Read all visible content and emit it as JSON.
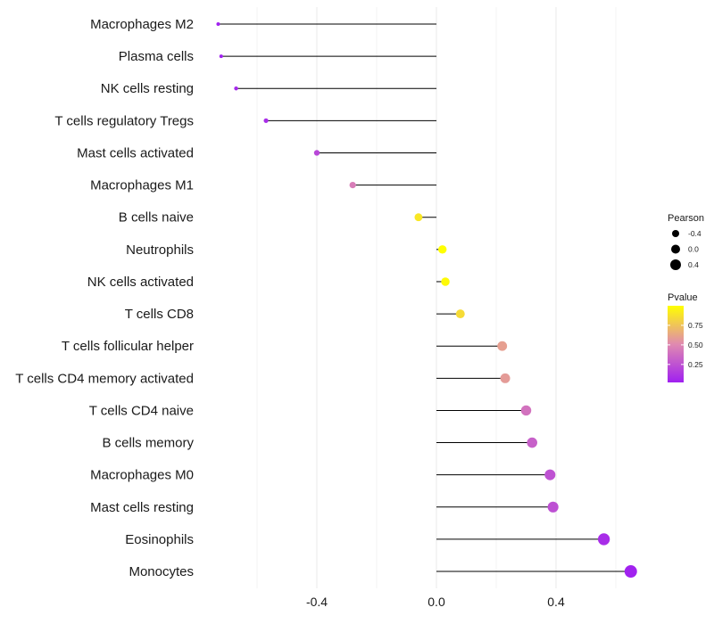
{
  "chart_data": {
    "type": "lollipop",
    "title": "",
    "xlabel": "",
    "ylabel": "",
    "xlim": [
      -0.73,
      0.75
    ],
    "x_ticks": [
      -0.4,
      0.0,
      0.4
    ],
    "x_tick_labels": [
      "-0.4",
      "0.0",
      "0.4"
    ],
    "grid": true,
    "categories": [
      "Macrophages M2",
      "Plasma cells",
      "NK cells resting",
      "T cells regulatory  Tregs",
      "Mast cells activated",
      "Macrophages M1",
      "B cells naive",
      "Neutrophils",
      "NK cells activated",
      "T cells CD8",
      "T cells follicular helper",
      "T cells CD4 memory activated",
      "T cells CD4 naive",
      "B cells memory",
      "Macrophages M0",
      "Mast cells resting",
      "Eosinophils",
      "Monocytes"
    ],
    "values": [
      -0.73,
      -0.72,
      -0.67,
      -0.57,
      -0.4,
      -0.28,
      -0.06,
      0.02,
      0.03,
      0.08,
      0.22,
      0.23,
      0.3,
      0.32,
      0.38,
      0.39,
      0.56,
      0.65
    ],
    "pvalues": [
      0.02,
      0.03,
      0.06,
      0.08,
      0.2,
      0.45,
      0.9,
      1.0,
      0.98,
      0.85,
      0.6,
      0.58,
      0.4,
      0.32,
      0.25,
      0.24,
      0.08,
      0.03
    ],
    "legends": {
      "size": {
        "title": "Pearson",
        "labels": [
          "-0.4",
          "0.0",
          "0.4"
        ],
        "values": [
          -0.4,
          0.0,
          0.4
        ]
      },
      "color": {
        "title": "Pvalue",
        "tick_labels": [
          "0.75",
          "0.50",
          "0.25"
        ],
        "tick_values": [
          0.75,
          0.5,
          0.25
        ],
        "range": [
          0.02,
          1.0
        ],
        "low_color": "#a020f0",
        "high_color": "#ffff00"
      },
      "placement": "right"
    },
    "colors": {
      "stem": "#000000",
      "grid": "#ebebeb"
    }
  }
}
